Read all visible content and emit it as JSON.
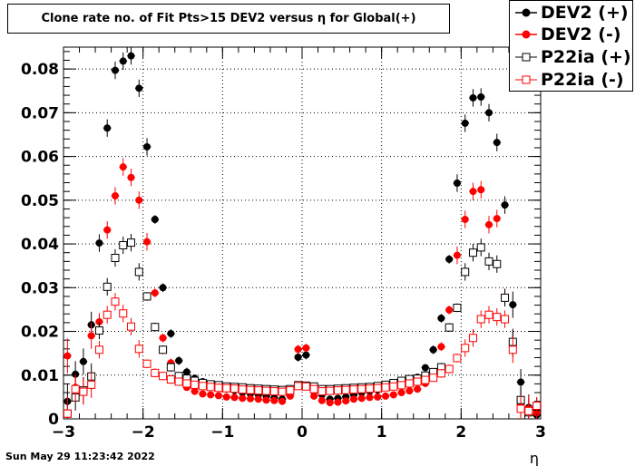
{
  "title": "Clone rate no. of Fit Pts>15 DEV2 versus η for Global(+)",
  "timestamp": "Sun May 29 11:23:42 2022",
  "colors": {
    "black": "#000000",
    "red": "#ff0000"
  },
  "chart_data": {
    "type": "scatter",
    "title": "Clone rate no. of Fit Pts>15 DEV2 versus η for Global(+)",
    "xlabel": "η",
    "ylabel": "",
    "xlim": [
      -3,
      3
    ],
    "ylim": [
      0,
      0.085
    ],
    "x_ticks": [
      -3,
      -2,
      -1,
      0,
      1,
      2,
      3
    ],
    "x_tick_labels": [
      "−3",
      "−2",
      "−1",
      "0",
      "1",
      "2",
      "3"
    ],
    "y_ticks": [
      0,
      0.01,
      0.02,
      0.03,
      0.04,
      0.05,
      0.06,
      0.07,
      0.08
    ],
    "y_tick_labels": [
      "0",
      "0.01",
      "0.02",
      "0.03",
      "0.04",
      "0.05",
      "0.06",
      "0.07",
      "0.08"
    ],
    "legend_position": "top-right",
    "x": [
      -2.95,
      -2.85,
      -2.75,
      -2.65,
      -2.55,
      -2.45,
      -2.35,
      -2.25,
      -2.15,
      -2.05,
      -1.95,
      -1.85,
      -1.75,
      -1.65,
      -1.55,
      -1.45,
      -1.35,
      -1.25,
      -1.15,
      -1.05,
      -0.95,
      -0.85,
      -0.75,
      -0.65,
      -0.55,
      -0.45,
      -0.35,
      -0.25,
      -0.15,
      -0.05,
      0.05,
      0.15,
      0.25,
      0.35,
      0.45,
      0.55,
      0.65,
      0.75,
      0.85,
      0.95,
      1.05,
      1.15,
      1.25,
      1.35,
      1.45,
      1.55,
      1.65,
      1.75,
      1.85,
      1.95,
      2.05,
      2.15,
      2.25,
      2.35,
      2.45,
      2.55,
      2.65,
      2.75,
      2.85,
      2.95
    ],
    "series": [
      {
        "name": "DEV2 (+)",
        "color": "#000000",
        "marker": "filled-circle",
        "values": [
          0.004,
          0.0102,
          0.0131,
          0.0215,
          0.0402,
          0.0665,
          0.0797,
          0.0818,
          0.083,
          0.0756,
          0.0622,
          0.0456,
          0.03,
          0.0195,
          0.0133,
          0.0107,
          0.0093,
          0.0085,
          0.0077,
          0.0072,
          0.0068,
          0.0065,
          0.006,
          0.0057,
          0.0055,
          0.0052,
          0.0048,
          0.0045,
          0.0057,
          0.0141,
          0.0146,
          0.0062,
          0.0055,
          0.0045,
          0.0047,
          0.005,
          0.0055,
          0.006,
          0.0063,
          0.0066,
          0.0072,
          0.0078,
          0.0083,
          0.0088,
          0.0095,
          0.0117,
          0.0158,
          0.023,
          0.0365,
          0.0539,
          0.0676,
          0.0734,
          0.0736,
          0.07,
          0.0632,
          0.0489,
          0.0261,
          0.0084,
          0.0026,
          0.0009
        ],
        "errors": [
          0.004,
          0.003,
          0.003,
          0.003,
          0.002,
          0.002,
          0.002,
          0.002,
          0.002,
          0.002,
          0.002,
          0.001,
          0.001,
          0.001,
          0.001,
          0.001,
          0.0005,
          0.0005,
          0.0005,
          0.0005,
          0.0005,
          0.0005,
          0.0005,
          0.0005,
          0.0005,
          0.0005,
          0.0005,
          0.0005,
          0.0008,
          0.001,
          0.001,
          0.0008,
          0.0005,
          0.0005,
          0.0005,
          0.0005,
          0.0005,
          0.0005,
          0.0005,
          0.0005,
          0.0005,
          0.0005,
          0.0005,
          0.0005,
          0.0005,
          0.0008,
          0.001,
          0.001,
          0.001,
          0.002,
          0.002,
          0.002,
          0.002,
          0.002,
          0.002,
          0.002,
          0.003,
          0.003,
          0.003,
          0.002
        ]
      },
      {
        "name": "DEV2 (-)",
        "color": "#ff0000",
        "marker": "filled-circle",
        "values": [
          0.0144,
          0.0072,
          0.0065,
          0.019,
          0.0222,
          0.0432,
          0.051,
          0.0576,
          0.0552,
          0.05,
          0.0405,
          0.0288,
          0.0185,
          0.0128,
          0.0097,
          0.0072,
          0.0063,
          0.0057,
          0.0055,
          0.0053,
          0.005,
          0.0049,
          0.0047,
          0.0046,
          0.0045,
          0.0043,
          0.0042,
          0.004,
          0.0052,
          0.0159,
          0.0162,
          0.0052,
          0.0042,
          0.0037,
          0.0038,
          0.0041,
          0.0045,
          0.0047,
          0.0049,
          0.005,
          0.0052,
          0.0055,
          0.006,
          0.0064,
          0.0068,
          0.0081,
          0.0098,
          0.0165,
          0.0249,
          0.0374,
          0.0456,
          0.052,
          0.0524,
          0.0444,
          0.0458,
          0.0278,
          0.0171,
          0.0034,
          0.0023,
          0.0014
        ],
        "errors": [
          0.004,
          0.003,
          0.003,
          0.003,
          0.002,
          0.002,
          0.002,
          0.002,
          0.002,
          0.002,
          0.002,
          0.001,
          0.001,
          0.001,
          0.001,
          0.0005,
          0.0005,
          0.0005,
          0.0005,
          0.0005,
          0.0005,
          0.0005,
          0.0005,
          0.0005,
          0.0005,
          0.0005,
          0.0005,
          0.0005,
          0.0008,
          0.001,
          0.001,
          0.0008,
          0.0005,
          0.0005,
          0.0005,
          0.0005,
          0.0005,
          0.0005,
          0.0005,
          0.0005,
          0.0005,
          0.0005,
          0.0005,
          0.0005,
          0.0005,
          0.0008,
          0.001,
          0.001,
          0.001,
          0.002,
          0.002,
          0.002,
          0.002,
          0.002,
          0.002,
          0.002,
          0.003,
          0.003,
          0.003,
          0.002
        ]
      },
      {
        "name": "P22ia (+)",
        "color": "#000000",
        "marker": "open-square",
        "values": [
          0.0012,
          0.0049,
          0.0065,
          0.0097,
          0.0202,
          0.0302,
          0.0368,
          0.0397,
          0.0403,
          0.0336,
          0.028,
          0.021,
          0.0158,
          0.0118,
          0.0098,
          0.0092,
          0.0087,
          0.0082,
          0.0079,
          0.0077,
          0.0074,
          0.0073,
          0.0072,
          0.007,
          0.0069,
          0.0068,
          0.0067,
          0.0066,
          0.0068,
          0.0077,
          0.0076,
          0.0074,
          0.0068,
          0.0068,
          0.0069,
          0.007,
          0.0071,
          0.0072,
          0.0073,
          0.0075,
          0.0078,
          0.0082,
          0.0087,
          0.0091,
          0.0092,
          0.0099,
          0.0107,
          0.0118,
          0.0209,
          0.0254,
          0.0336,
          0.038,
          0.0392,
          0.036,
          0.0354,
          0.0277,
          0.0176,
          0.0043,
          0.0015,
          0.0028
        ],
        "errors": [
          0.004,
          0.003,
          0.003,
          0.003,
          0.002,
          0.002,
          0.002,
          0.002,
          0.002,
          0.002,
          0.001,
          0.001,
          0.001,
          0.001,
          0.0005,
          0.0005,
          0.0005,
          0.0005,
          0.0005,
          0.0005,
          0.0005,
          0.0005,
          0.0005,
          0.0005,
          0.0005,
          0.0005,
          0.0005,
          0.0005,
          0.0005,
          0.0008,
          0.0008,
          0.0005,
          0.0005,
          0.0005,
          0.0005,
          0.0005,
          0.0005,
          0.0005,
          0.0005,
          0.0005,
          0.0005,
          0.0005,
          0.0005,
          0.0005,
          0.0005,
          0.0005,
          0.0008,
          0.001,
          0.001,
          0.001,
          0.002,
          0.002,
          0.002,
          0.002,
          0.002,
          0.002,
          0.003,
          0.003,
          0.003,
          0.002
        ]
      },
      {
        "name": "P22ia (-)",
        "color": "#ff0000",
        "marker": "open-square",
        "values": [
          0.0012,
          0.0068,
          0.0062,
          0.0078,
          0.0158,
          0.0238,
          0.0268,
          0.0241,
          0.0211,
          0.016,
          0.0126,
          0.0105,
          0.0098,
          0.009,
          0.0085,
          0.0081,
          0.0078,
          0.0075,
          0.0073,
          0.0071,
          0.007,
          0.0069,
          0.0067,
          0.0066,
          0.0065,
          0.0064,
          0.0063,
          0.0062,
          0.0065,
          0.0075,
          0.0074,
          0.0068,
          0.0063,
          0.0064,
          0.0065,
          0.0066,
          0.0067,
          0.0068,
          0.0069,
          0.007,
          0.0072,
          0.0074,
          0.0077,
          0.0081,
          0.0085,
          0.0089,
          0.0094,
          0.0104,
          0.0114,
          0.0139,
          0.0162,
          0.0185,
          0.0228,
          0.0238,
          0.0233,
          0.0228,
          0.0158,
          0.0023,
          0.0018,
          0.003
        ],
        "errors": [
          0.004,
          0.003,
          0.003,
          0.003,
          0.002,
          0.002,
          0.002,
          0.002,
          0.002,
          0.002,
          0.001,
          0.001,
          0.001,
          0.001,
          0.0005,
          0.0005,
          0.0005,
          0.0005,
          0.0005,
          0.0005,
          0.0005,
          0.0005,
          0.0005,
          0.0005,
          0.0005,
          0.0005,
          0.0005,
          0.0005,
          0.0005,
          0.0008,
          0.0008,
          0.0005,
          0.0005,
          0.0005,
          0.0005,
          0.0005,
          0.0005,
          0.0005,
          0.0005,
          0.0005,
          0.0005,
          0.0005,
          0.0005,
          0.0005,
          0.0005,
          0.0005,
          0.0008,
          0.001,
          0.001,
          0.001,
          0.002,
          0.002,
          0.002,
          0.002,
          0.002,
          0.002,
          0.003,
          0.003,
          0.003,
          0.002
        ]
      }
    ]
  }
}
